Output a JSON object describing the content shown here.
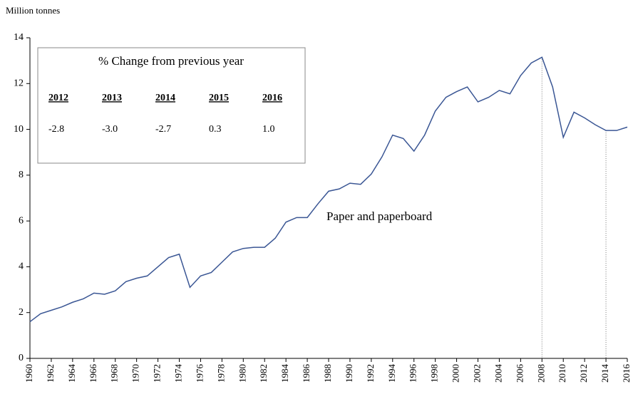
{
  "chart_data": {
    "type": "line",
    "y_label": "Million tonnes",
    "x": [
      1960,
      1961,
      1962,
      1963,
      1964,
      1965,
      1966,
      1967,
      1968,
      1969,
      1970,
      1971,
      1972,
      1973,
      1974,
      1975,
      1976,
      1977,
      1978,
      1979,
      1980,
      1981,
      1982,
      1983,
      1984,
      1985,
      1986,
      1987,
      1988,
      1989,
      1990,
      1991,
      1992,
      1993,
      1994,
      1995,
      1996,
      1997,
      1998,
      1999,
      2000,
      2001,
      2002,
      2003,
      2004,
      2005,
      2006,
      2007,
      2008,
      2009,
      2010,
      2011,
      2012,
      2013,
      2014,
      2015,
      2016
    ],
    "series": [
      {
        "name": "Paper and paperboard",
        "color": "#3a5694",
        "values": [
          1.6,
          1.95,
          2.1,
          2.25,
          2.45,
          2.6,
          2.85,
          2.8,
          2.95,
          3.35,
          3.5,
          3.6,
          4.0,
          4.4,
          4.55,
          3.1,
          3.6,
          3.75,
          4.2,
          4.65,
          4.8,
          4.85,
          4.85,
          5.25,
          5.95,
          6.15,
          6.15,
          6.75,
          7.3,
          7.4,
          7.65,
          7.6,
          8.05,
          8.8,
          9.75,
          9.6,
          9.05,
          9.75,
          10.8,
          11.4,
          11.65,
          11.85,
          11.2,
          11.4,
          11.7,
          11.55,
          12.35,
          12.9,
          13.15,
          11.85,
          9.65,
          10.75,
          10.5,
          10.2,
          9.95,
          9.95,
          10.1
        ]
      }
    ],
    "xlim": [
      1960,
      2016
    ],
    "xticks": [
      1960,
      1962,
      1964,
      1966,
      1968,
      1970,
      1972,
      1974,
      1976,
      1978,
      1980,
      1982,
      1984,
      1986,
      1988,
      1990,
      1992,
      1994,
      1996,
      1998,
      2000,
      2002,
      2004,
      2006,
      2008,
      2010,
      2012,
      2014,
      2016
    ],
    "ylim": [
      0,
      14
    ],
    "yticks": [
      0,
      2,
      4,
      6,
      8,
      10,
      12,
      14
    ],
    "reference_lines": [
      2008,
      2014
    ],
    "inset": {
      "title": "% Change from previous year",
      "columns": [
        "2012",
        "2013",
        "2014",
        "2015",
        "2016"
      ],
      "values": [
        "-2.8",
        "-3.0",
        "-2.7",
        "0.3",
        "1.0"
      ]
    }
  }
}
